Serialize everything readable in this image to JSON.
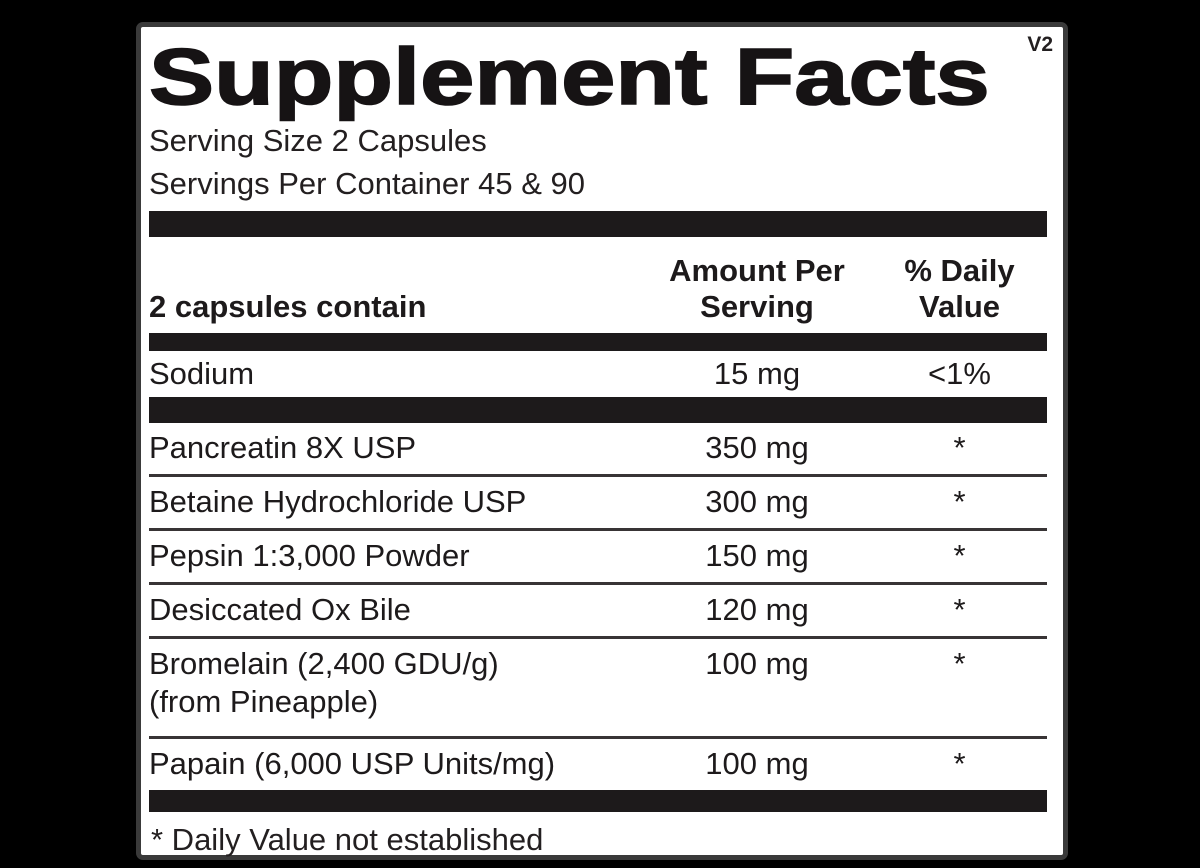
{
  "label": {
    "title": "Supplement Facts",
    "version": "V2",
    "serving_size": "Serving Size 2 Capsules",
    "servings_per_container": "Servings Per Container 45 & 90",
    "header": {
      "ingredient_col": "2 capsules contain",
      "amount_col": "Amount Per Serving",
      "daily_value_col": "% Daily Value"
    },
    "sodium_row": {
      "name": "Sodium",
      "amount": "15 mg",
      "daily_value": "<1%"
    },
    "rows": [
      {
        "name": "Pancreatin 8X USP",
        "amount": "350 mg",
        "daily_value": "*"
      },
      {
        "name": "Betaine Hydrochloride USP",
        "amount": "300 mg",
        "daily_value": "*"
      },
      {
        "name": "Pepsin 1:3,000 Powder",
        "amount": "150 mg",
        "daily_value": "*"
      },
      {
        "name": "Desiccated Ox Bile",
        "amount": "120 mg",
        "daily_value": "*"
      },
      {
        "name": "Bromelain (2,400 GDU/g)",
        "name_line2": "(from Pineapple)",
        "amount": "100 mg",
        "daily_value": "*"
      },
      {
        "name": "Papain (6,000 USP Units/mg)",
        "amount": "100 mg",
        "daily_value": "*"
      }
    ],
    "footnote": "* Daily Value not established"
  },
  "colors": {
    "background": "#000000",
    "panel": "#ffffff",
    "ink": "#1d1a1b"
  }
}
